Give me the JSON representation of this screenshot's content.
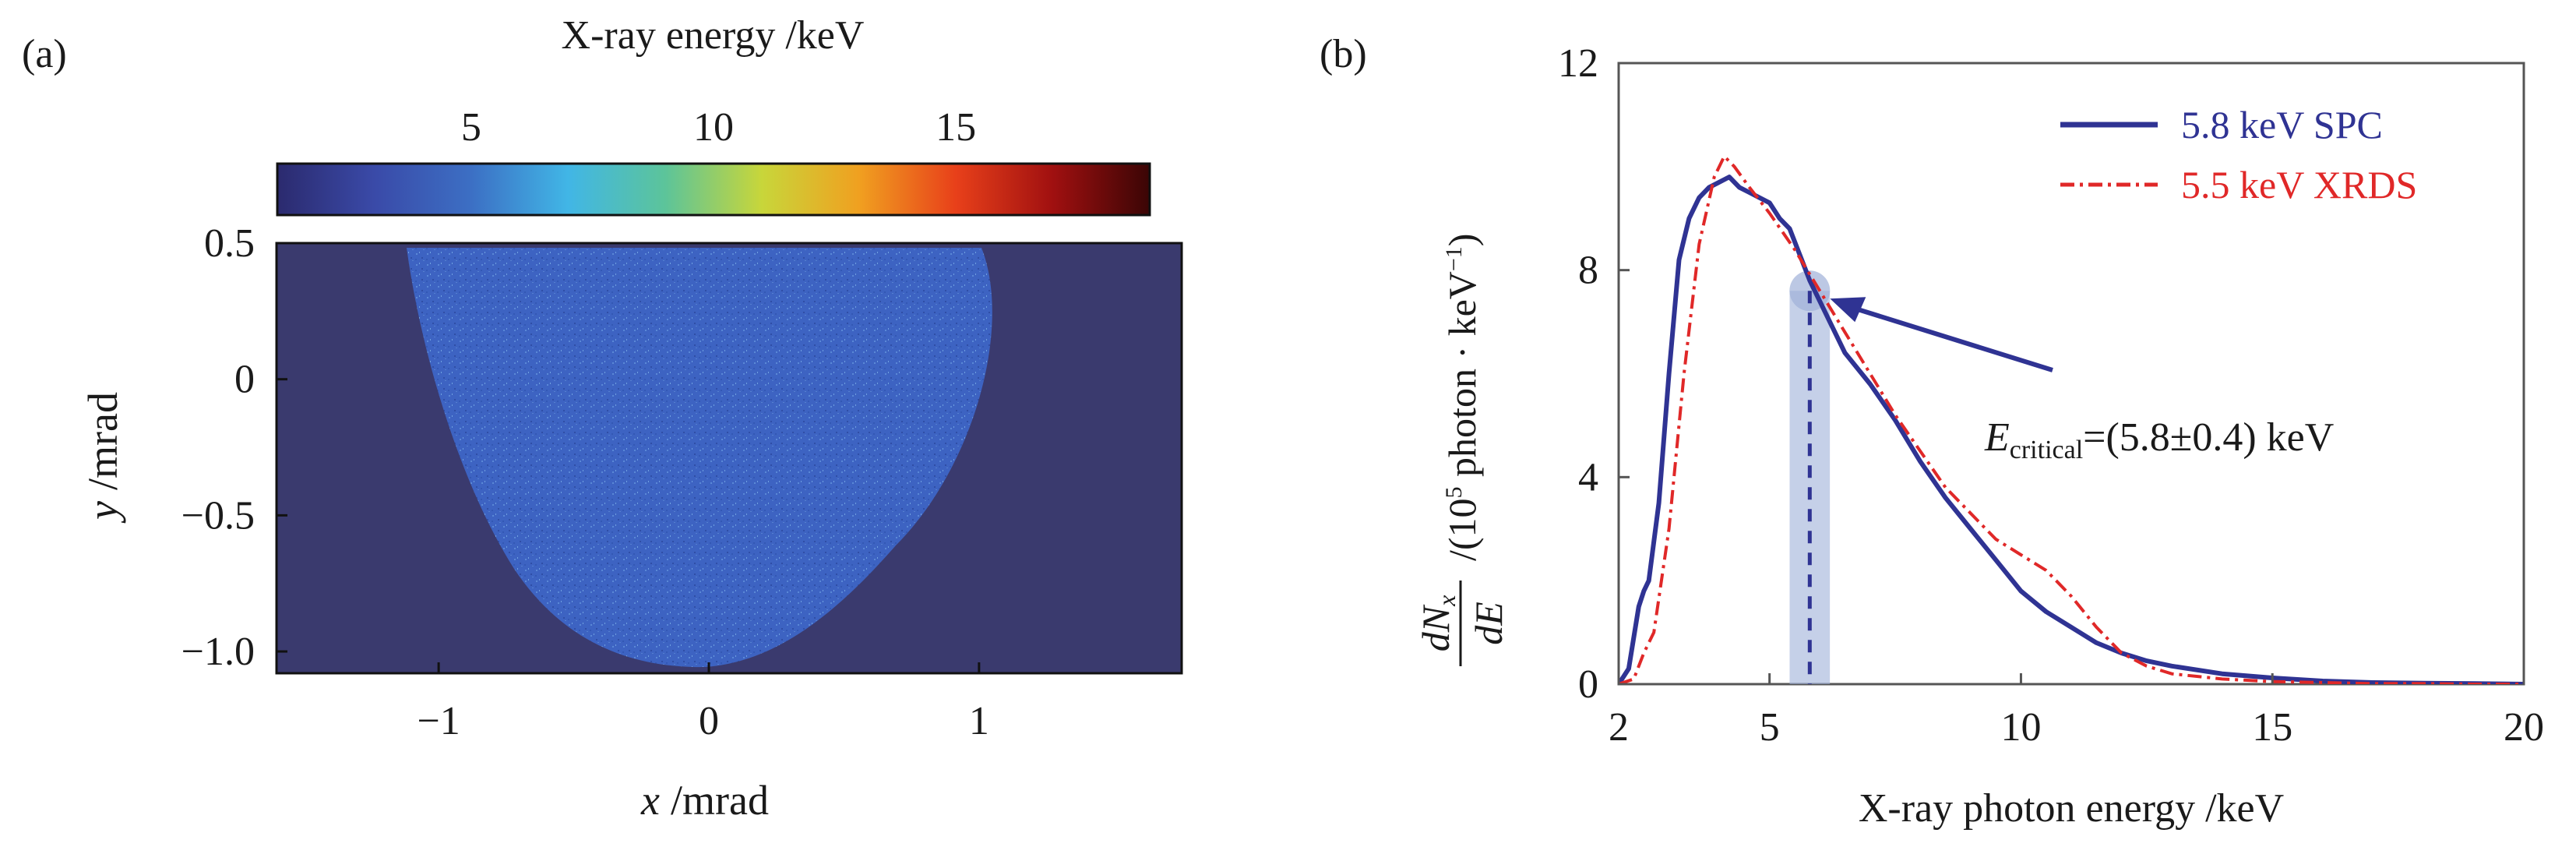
{
  "panel_a": {
    "label": "(a)",
    "colorbar": {
      "title": "X-ray energy /keV",
      "ticks": [
        "5",
        "10",
        "15"
      ],
      "tick_values": [
        5,
        10,
        15
      ],
      "range": [
        1,
        19
      ],
      "colors": [
        "#2b2a6e",
        "#3a4aa8",
        "#3c6fc4",
        "#41b6e6",
        "#5cc49a",
        "#c8d63a",
        "#f0a020",
        "#e8401a",
        "#a01010",
        "#3a0505"
      ]
    },
    "background_color": "#3a3a6e",
    "beam_color": "#3d63c2"
  },
  "panel_b": {
    "label": "(b)",
    "annotation": {
      "symbol": "E",
      "subscript": "critical",
      "value": "=(5.8±0.4) keV",
      "marker_x": 5.8,
      "marker_y": 7.6,
      "marker_halfwidth": 0.4
    }
  },
  "chart_data": [
    {
      "type": "heatmap",
      "xlabel_var": "x",
      "xlabel_unit": "/mrad",
      "ylabel_var": "y",
      "ylabel_unit": "/mrad",
      "xlim": [
        -1.6,
        1.75
      ],
      "ylim": [
        -1.08,
        0.5
      ],
      "xticks": [
        -1,
        0,
        1
      ],
      "xtick_labels": [
        "−1",
        "0",
        "1"
      ],
      "yticks": [
        0.5,
        0,
        -0.5,
        -1.0
      ],
      "ytick_labels": [
        "0.5",
        "0",
        "−0.5",
        "−1.0"
      ],
      "colorbar_label": "X-ray energy /keV"
    },
    {
      "type": "line",
      "xlabel": "X-ray photon energy /keV",
      "ylabel_num": "dN",
      "ylabel_sub": "x",
      "ylabel_den": "dE",
      "ylabel_unit_prefix": "/(10",
      "ylabel_unit_exp": "5",
      "ylabel_unit_rest": " photon · keV",
      "ylabel_unit_exp2": "−1",
      "ylabel_unit_close": ")",
      "xlim": [
        2,
        20
      ],
      "ylim": [
        0,
        12
      ],
      "xticks": [
        2,
        5,
        10,
        15,
        20
      ],
      "yticks": [
        0,
        4,
        8,
        12
      ],
      "legend_position": "top-right",
      "series": [
        {
          "name": "5.8 keV SPC",
          "color": "#2f3393",
          "style": "solid",
          "x": [
            2.0,
            2.2,
            2.4,
            2.5,
            2.6,
            2.8,
            3.0,
            3.2,
            3.4,
            3.6,
            3.8,
            4.0,
            4.2,
            4.4,
            4.6,
            4.8,
            5.0,
            5.2,
            5.4,
            5.6,
            5.8,
            6.0,
            6.2,
            6.5,
            7.0,
            7.5,
            8.0,
            8.5,
            9.0,
            9.5,
            10.0,
            10.5,
            11.0,
            11.5,
            12.0,
            12.5,
            13.0,
            14.0,
            15.0,
            16.0,
            17.0,
            18.0,
            19.0,
            20.0
          ],
          "y": [
            0.0,
            0.3,
            1.5,
            1.8,
            2.0,
            3.5,
            6.0,
            8.2,
            9.0,
            9.4,
            9.6,
            9.7,
            9.8,
            9.6,
            9.5,
            9.4,
            9.3,
            9.0,
            8.8,
            8.3,
            7.8,
            7.4,
            7.0,
            6.4,
            5.8,
            5.1,
            4.3,
            3.6,
            3.0,
            2.4,
            1.8,
            1.4,
            1.1,
            0.8,
            0.6,
            0.45,
            0.35,
            0.2,
            0.12,
            0.06,
            0.03,
            0.02,
            0.01,
            0.0
          ]
        },
        {
          "name": "5.5 keV XRDS",
          "color": "#e02828",
          "style": "dash-dot",
          "x": [
            2.0,
            2.3,
            2.5,
            2.7,
            3.0,
            3.3,
            3.6,
            3.9,
            4.1,
            4.3,
            4.6,
            5.0,
            5.5,
            6.0,
            6.5,
            7.0,
            7.5,
            8.0,
            8.5,
            9.0,
            9.5,
            10.0,
            10.5,
            11.0,
            11.5,
            12.0,
            12.5,
            13.0,
            14.0,
            15.0,
            16.0,
            17.0,
            18.0,
            19.0,
            20.0
          ],
          "y": [
            0.0,
            0.1,
            0.6,
            1.0,
            3.0,
            6.0,
            8.5,
            9.8,
            10.2,
            10.0,
            9.6,
            9.1,
            8.4,
            7.6,
            6.8,
            6.0,
            5.2,
            4.5,
            3.8,
            3.3,
            2.8,
            2.5,
            2.2,
            1.7,
            1.1,
            0.6,
            0.35,
            0.2,
            0.1,
            0.05,
            0.03,
            0.01,
            0.01,
            0.0,
            0.0
          ]
        }
      ]
    }
  ]
}
